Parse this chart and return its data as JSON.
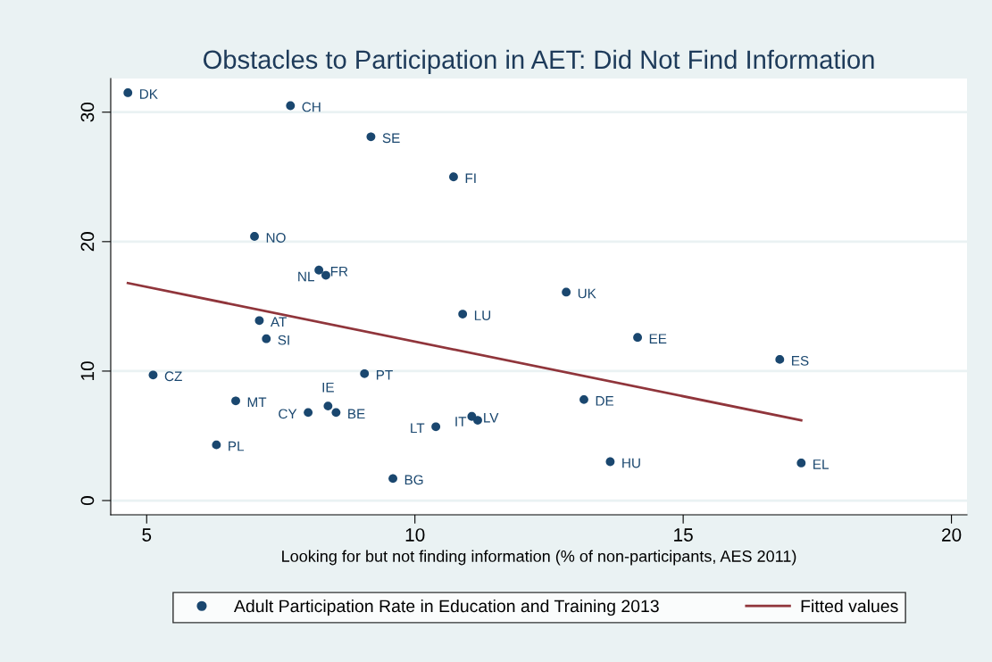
{
  "chart_data": {
    "type": "scatter",
    "title": "Obstacles to Participation in AET: Did Not Find Information",
    "xlabel": "Looking for but not finding information (% of non-participants, AES 2011)",
    "x": [
      4.65,
      7.68,
      9.18,
      10.72,
      7.01,
      8.21,
      8.34,
      12.82,
      10.89,
      7.1,
      14.15,
      7.23,
      16.8,
      5.12,
      9.06,
      6.66,
      13.15,
      8.38,
      8.01,
      8.53,
      11.06,
      11.17,
      10.39,
      6.3,
      13.64,
      17.2,
      9.59
    ],
    "series": [
      {
        "name": "Adult Participation Rate in Education and Training 2013",
        "color": "#1a476f",
        "marker": "circle",
        "values": [
          31.5,
          30.5,
          28.1,
          25.0,
          20.4,
          17.8,
          17.4,
          16.1,
          14.4,
          13.9,
          12.6,
          12.5,
          10.9,
          9.7,
          9.8,
          7.7,
          7.8,
          7.3,
          6.8,
          6.8,
          6.5,
          6.2,
          5.7,
          4.3,
          3.0,
          2.9,
          1.7
        ]
      },
      {
        "name": "Fitted values",
        "type": "line",
        "color": "#90353b",
        "marker": "none",
        "x": [
          4.65,
          17.2
        ],
        "values": [
          16.8,
          6.2
        ]
      }
    ],
    "annotations": [
      {
        "text": "DK",
        "x": 4.65,
        "y": 31.5
      },
      {
        "text": "CH",
        "x": 7.68,
        "y": 30.5
      },
      {
        "text": "SE",
        "x": 9.18,
        "y": 28.1
      },
      {
        "text": "FI",
        "x": 10.72,
        "y": 25.0
      },
      {
        "text": "NO",
        "x": 7.01,
        "y": 20.4
      },
      {
        "text": "FR",
        "x": 8.21,
        "y": 17.8
      },
      {
        "text": "NL",
        "x": 8.34,
        "y": 17.4
      },
      {
        "text": "UK",
        "x": 12.82,
        "y": 16.1
      },
      {
        "text": "LU",
        "x": 10.89,
        "y": 14.4
      },
      {
        "text": "AT",
        "x": 7.1,
        "y": 13.9
      },
      {
        "text": "EE",
        "x": 14.15,
        "y": 12.6
      },
      {
        "text": "SI",
        "x": 7.23,
        "y": 12.5
      },
      {
        "text": "ES",
        "x": 16.8,
        "y": 10.9
      },
      {
        "text": "CZ",
        "x": 5.12,
        "y": 9.7
      },
      {
        "text": "PT",
        "x": 9.06,
        "y": 9.8
      },
      {
        "text": "MT",
        "x": 6.66,
        "y": 7.7
      },
      {
        "text": "DE",
        "x": 13.15,
        "y": 7.8
      },
      {
        "text": "IE",
        "x": 8.38,
        "y": 7.3
      },
      {
        "text": "CY",
        "x": 8.01,
        "y": 6.8
      },
      {
        "text": "BE",
        "x": 8.53,
        "y": 6.8
      },
      {
        "text": "LV",
        "x": 11.06,
        "y": 6.5
      },
      {
        "text": "IT",
        "x": 11.17,
        "y": 6.2
      },
      {
        "text": "LT",
        "x": 10.39,
        "y": 5.7
      },
      {
        "text": "PL",
        "x": 6.3,
        "y": 4.3
      },
      {
        "text": "HU",
        "x": 13.64,
        "y": 3.0
      },
      {
        "text": "EL",
        "x": 17.2,
        "y": 2.9
      },
      {
        "text": "BG",
        "x": 9.59,
        "y": 1.7
      }
    ],
    "xlim": [
      4.33,
      20.29
    ],
    "ylim": [
      -1.1,
      32.6
    ],
    "xticks": [
      5,
      10,
      15,
      20
    ],
    "yticks": [
      0,
      10,
      20,
      30
    ],
    "grid": "y",
    "legend": "bottom"
  }
}
